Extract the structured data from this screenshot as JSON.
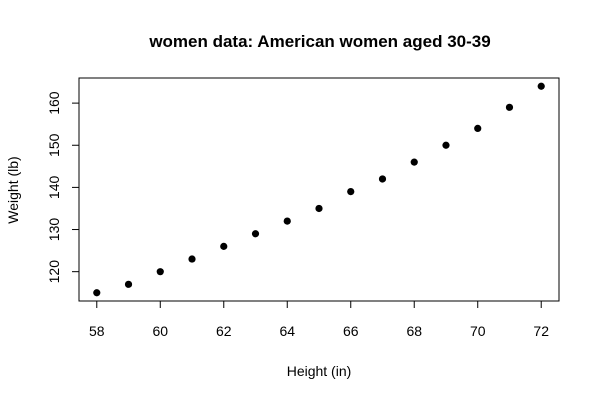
{
  "chart_data": {
    "type": "scatter",
    "title": "women data: American women aged 30-39",
    "xlabel": "Height (in)",
    "ylabel": "Weight (lb)",
    "xlim": [
      57.44,
      72.56
    ],
    "ylim": [
      113.04,
      165.96
    ],
    "xticks": [
      58,
      60,
      62,
      64,
      66,
      68,
      70,
      72
    ],
    "yticks": [
      120,
      130,
      140,
      150,
      160
    ],
    "grid": false,
    "marker_color": "#000000",
    "x": [
      58,
      59,
      60,
      61,
      62,
      63,
      64,
      65,
      66,
      67,
      68,
      69,
      70,
      71,
      72
    ],
    "y": [
      115,
      117,
      120,
      123,
      126,
      129,
      132,
      135,
      139,
      142,
      146,
      150,
      154,
      159,
      164
    ]
  }
}
